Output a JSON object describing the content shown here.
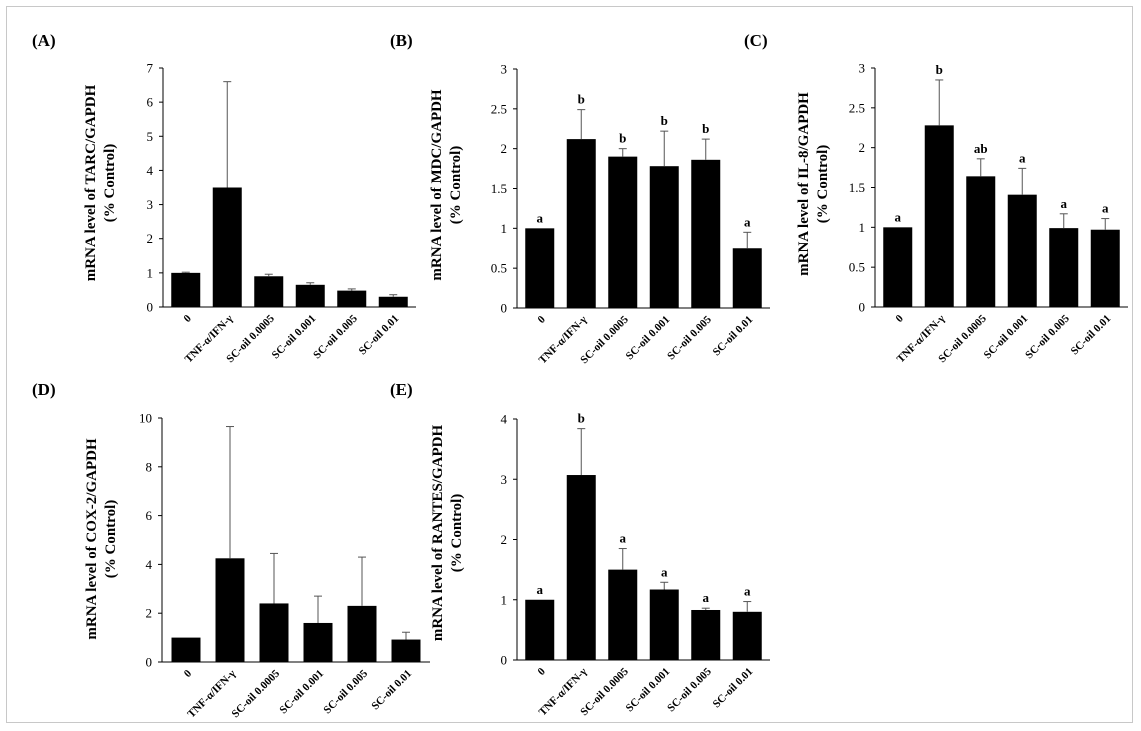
{
  "figure": {
    "panels": [
      {
        "label": "(A)",
        "ylabel_line1": "mRNA level of  TARC/GAPDH",
        "ylabel_line2": "(% Control)"
      },
      {
        "label": "(B)",
        "ylabel_line1": "mRNA level of  MDC/GAPDH",
        "ylabel_line2": "(% Control)"
      },
      {
        "label": "(C)",
        "ylabel_line1": "mRNA level of  IL-8/GAPDH",
        "ylabel_line2": "(% Control)"
      },
      {
        "label": "(D)",
        "ylabel_line1": "mRNA level of  COX-2/GAPDH",
        "ylabel_line2": "(% Control)"
      },
      {
        "label": "(E)",
        "ylabel_line1": "mRNA level of  RANTES/GAPDH",
        "ylabel_line2": "(% Control)"
      }
    ]
  },
  "chart_data": [
    {
      "type": "bar",
      "title": "(A)",
      "ylabel": "mRNA level of  TARC/GAPDH (% Control)",
      "categories": [
        "0",
        "TNF-α/IFN-γ",
        "SC-oil 0.0005",
        "SC-oil 0.001",
        "SC-oil 0.005",
        "SC-oil 0.01"
      ],
      "values": [
        1.0,
        3.5,
        0.9,
        0.65,
        0.48,
        0.3
      ],
      "errors": [
        0.02,
        3.1,
        0.06,
        0.06,
        0.05,
        0.06
      ],
      "significance": [
        "",
        "",
        "",
        "",
        "",
        ""
      ],
      "ylim": [
        0,
        7
      ],
      "yticks": [
        0,
        1,
        2,
        3,
        4,
        5,
        6,
        7
      ],
      "bar_color": "#000000",
      "grid": false
    },
    {
      "type": "bar",
      "title": "(B)",
      "ylabel": "mRNA level of  MDC/GAPDH (% Control)",
      "categories": [
        "0",
        "TNF-α/IFN-γ",
        "SC-oil 0.0005",
        "SC-oil 0.001",
        "SC-oil 0.005",
        "SC-oil 0.01"
      ],
      "values": [
        1.0,
        2.12,
        1.9,
        1.78,
        1.86,
        0.75
      ],
      "errors": [
        0.0,
        0.37,
        0.1,
        0.44,
        0.26,
        0.2
      ],
      "significance": [
        "a",
        "b",
        "b",
        "b",
        "b",
        "a"
      ],
      "ylim": [
        0,
        3
      ],
      "yticks": [
        0,
        0.5,
        1,
        1.5,
        2,
        2.5,
        3
      ],
      "bar_color": "#000000",
      "grid": false
    },
    {
      "type": "bar",
      "title": "(C)",
      "ylabel": "mRNA level of  IL-8/GAPDH (% Control)",
      "categories": [
        "0",
        "TNF-α/IFN-γ",
        "SC-oil 0.0005",
        "SC-oil 0.001",
        "SC-oil 0.005",
        "SC-oil 0.01"
      ],
      "values": [
        1.0,
        2.28,
        1.64,
        1.41,
        0.99,
        0.97
      ],
      "errors": [
        0.0,
        0.57,
        0.22,
        0.33,
        0.18,
        0.14
      ],
      "significance": [
        "a",
        "b",
        "ab",
        "a",
        "a",
        "a"
      ],
      "ylim": [
        0,
        3
      ],
      "yticks": [
        0,
        0.5,
        1,
        1.5,
        2,
        2.5,
        3
      ],
      "bar_color": "#000000",
      "grid": false
    },
    {
      "type": "bar",
      "title": "(D)",
      "ylabel": "mRNA level of  COX-2/GAPDH (% Control)",
      "categories": [
        "0",
        "TNF-α/IFN-γ",
        "SC-oil 0.0005",
        "SC-oil 0.001",
        "SC-oil 0.005",
        "SC-oil 0.01"
      ],
      "values": [
        1.0,
        4.25,
        2.4,
        1.6,
        2.3,
        0.92
      ],
      "errors": [
        0.0,
        5.4,
        2.05,
        1.1,
        2.0,
        0.3
      ],
      "significance": [
        "",
        "",
        "",
        "",
        "",
        ""
      ],
      "ylim": [
        0,
        10
      ],
      "yticks": [
        0,
        2,
        4,
        6,
        8,
        10
      ],
      "bar_color": "#000000",
      "grid": false
    },
    {
      "type": "bar",
      "title": "(E)",
      "ylabel": "mRNA level of  RANTES/GAPDH (% Control)",
      "categories": [
        "0",
        "TNF-α/IFN-γ",
        "SC-oil 0.0005",
        "SC-oil 0.001",
        "SC-oil 0.005",
        "SC-oil 0.01"
      ],
      "values": [
        1.0,
        3.07,
        1.5,
        1.17,
        0.83,
        0.8
      ],
      "errors": [
        0.0,
        0.77,
        0.35,
        0.12,
        0.03,
        0.17
      ],
      "significance": [
        "a",
        "b",
        "a",
        "a",
        "a",
        "a"
      ],
      "ylim": [
        0,
        4
      ],
      "yticks": [
        0,
        1,
        2,
        3,
        4
      ],
      "bar_color": "#000000",
      "grid": false
    }
  ]
}
